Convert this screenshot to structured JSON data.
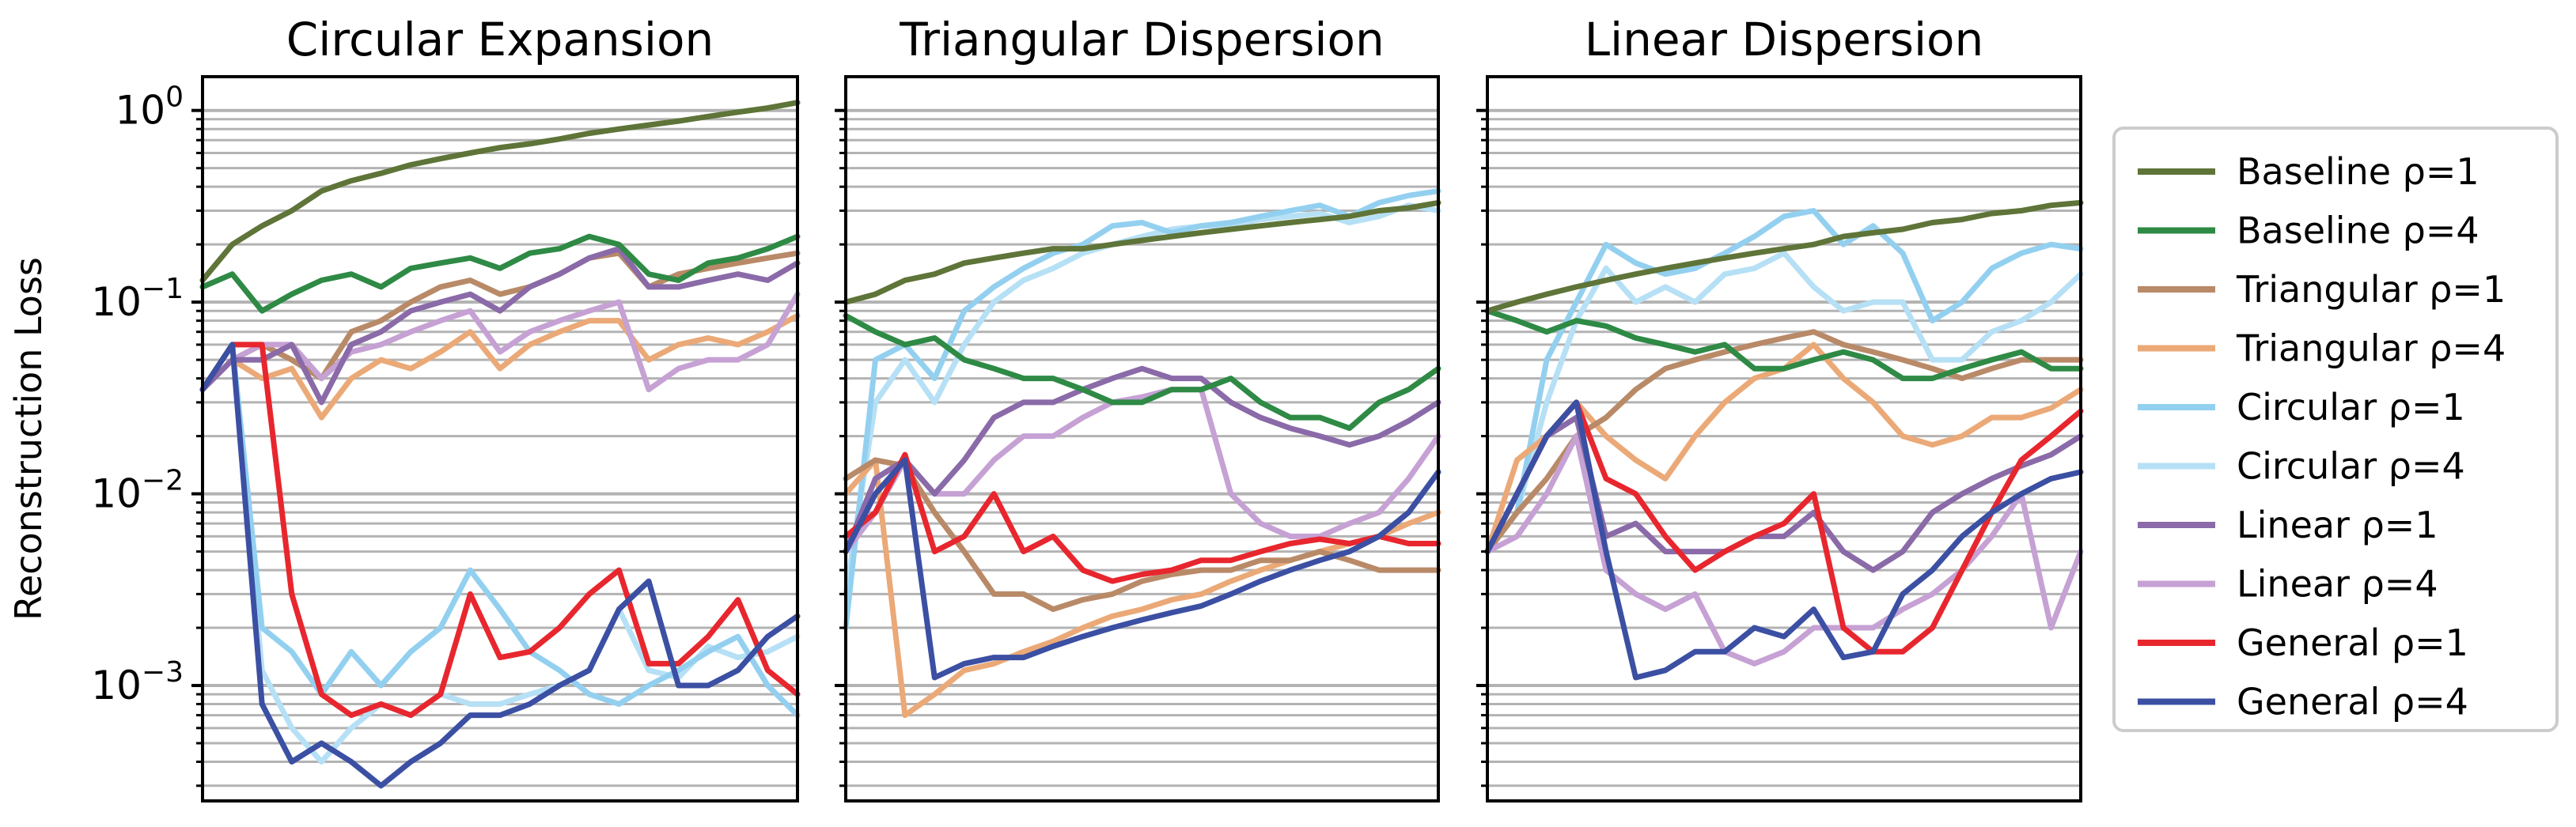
{
  "chart_data": {
    "type": "line",
    "yscale": "log",
    "ylabel": "Reconstruction Loss",
    "ylim": [
      0.00025,
      1.5
    ],
    "y_major_ticks": [
      {
        "value": 1,
        "label_base": "10",
        "label_exp": "0"
      },
      {
        "value": 0.1,
        "label_base": "10",
        "label_exp": "−1"
      },
      {
        "value": 0.01,
        "label_base": "10",
        "label_exp": "−2"
      },
      {
        "value": 0.001,
        "label_base": "10",
        "label_exp": "−3"
      }
    ],
    "grid": "horizontal, major and minor",
    "legend_placement": "right, outside",
    "legend": [
      {
        "key": "baseline1",
        "label": "Baseline ρ=1",
        "color": "#5f7438"
      },
      {
        "key": "baseline4",
        "label": "Baseline ρ=4",
        "color": "#2e8a45"
      },
      {
        "key": "tri1",
        "label": "Triangular ρ=1",
        "color": "#b98a68"
      },
      {
        "key": "tri4",
        "label": "Triangular ρ=4",
        "color": "#eba977"
      },
      {
        "key": "circ1",
        "label": "Circular ρ=1",
        "color": "#93d0f0"
      },
      {
        "key": "circ4",
        "label": "Circular ρ=4",
        "color": "#b6e0f5"
      },
      {
        "key": "lin1",
        "label": "Linear ρ=1",
        "color": "#8a6aa8"
      },
      {
        "key": "lin4",
        "label": "Linear ρ=4",
        "color": "#c6a1d4"
      },
      {
        "key": "gen1",
        "label": "General ρ=1",
        "color": "#e8262e"
      },
      {
        "key": "gen4",
        "label": "General ρ=4",
        "color": "#3b4fa3"
      }
    ],
    "panels": [
      {
        "title": "Circular Expansion",
        "x": [
          0,
          5,
          10,
          15,
          20,
          25,
          30,
          35,
          40,
          45,
          50,
          55,
          60,
          65,
          70,
          75,
          80,
          85,
          90,
          95,
          100
        ],
        "series": {
          "baseline1": [
            0.13,
            0.2,
            0.25,
            0.3,
            0.38,
            0.43,
            0.47,
            0.52,
            0.56,
            0.6,
            0.64,
            0.67,
            0.71,
            0.76,
            0.8,
            0.84,
            0.88,
            0.93,
            0.98,
            1.03,
            1.1
          ],
          "baseline4": [
            0.12,
            0.14,
            0.09,
            0.11,
            0.13,
            0.14,
            0.12,
            0.15,
            0.16,
            0.17,
            0.15,
            0.18,
            0.19,
            0.22,
            0.2,
            0.14,
            0.13,
            0.16,
            0.17,
            0.19,
            0.22
          ],
          "tri1": [
            0.035,
            0.05,
            0.06,
            0.05,
            0.04,
            0.07,
            0.08,
            0.1,
            0.12,
            0.13,
            0.11,
            0.12,
            0.14,
            0.17,
            0.18,
            0.12,
            0.14,
            0.15,
            0.16,
            0.17,
            0.18
          ],
          "tri4": [
            0.035,
            0.05,
            0.04,
            0.045,
            0.025,
            0.04,
            0.05,
            0.045,
            0.055,
            0.07,
            0.045,
            0.06,
            0.07,
            0.08,
            0.08,
            0.05,
            0.06,
            0.065,
            0.06,
            0.07,
            0.085
          ],
          "circ1": [
            0.035,
            0.06,
            0.002,
            0.0015,
            0.0009,
            0.0015,
            0.001,
            0.0015,
            0.002,
            0.004,
            0.0025,
            0.0015,
            0.0012,
            0.0009,
            0.0008,
            0.001,
            0.0012,
            0.0015,
            0.0018,
            0.001,
            0.0007
          ],
          "circ4": [
            0.035,
            0.06,
            0.0012,
            0.0006,
            0.0004,
            0.0006,
            0.0008,
            0.0007,
            0.0009,
            0.0008,
            0.0008,
            0.0009,
            0.001,
            0.0012,
            0.0025,
            0.0012,
            0.0011,
            0.0016,
            0.0014,
            0.0015,
            0.0018
          ],
          "lin1": [
            0.035,
            0.05,
            0.05,
            0.06,
            0.03,
            0.06,
            0.07,
            0.09,
            0.1,
            0.11,
            0.09,
            0.12,
            0.14,
            0.17,
            0.19,
            0.12,
            0.12,
            0.13,
            0.14,
            0.13,
            0.16
          ],
          "lin4": [
            0.035,
            0.05,
            0.06,
            0.06,
            0.04,
            0.055,
            0.06,
            0.07,
            0.08,
            0.09,
            0.055,
            0.07,
            0.08,
            0.09,
            0.1,
            0.035,
            0.045,
            0.05,
            0.05,
            0.06,
            0.11
          ],
          "gen1": [
            0.035,
            0.06,
            0.06,
            0.003,
            0.0009,
            0.0007,
            0.0008,
            0.0007,
            0.0009,
            0.003,
            0.0014,
            0.0015,
            0.002,
            0.003,
            0.004,
            0.0013,
            0.0013,
            0.0018,
            0.0028,
            0.0012,
            0.0009
          ],
          "gen4": [
            0.035,
            0.06,
            0.0008,
            0.0004,
            0.0005,
            0.0004,
            0.0003,
            0.0004,
            0.0005,
            0.0007,
            0.0007,
            0.0008,
            0.001,
            0.0012,
            0.0025,
            0.0035,
            0.001,
            0.001,
            0.0012,
            0.0018,
            0.0023
          ]
        }
      },
      {
        "title": "Triangular Dispersion",
        "x": [
          0,
          5,
          10,
          15,
          20,
          25,
          30,
          35,
          40,
          45,
          50,
          55,
          60,
          65,
          70,
          75,
          80,
          85,
          90,
          95,
          100
        ],
        "series": {
          "baseline1": [
            0.1,
            0.11,
            0.13,
            0.14,
            0.16,
            0.17,
            0.18,
            0.19,
            0.19,
            0.2,
            0.21,
            0.22,
            0.23,
            0.24,
            0.25,
            0.26,
            0.27,
            0.28,
            0.3,
            0.31,
            0.33
          ],
          "baseline4": [
            0.085,
            0.07,
            0.06,
            0.065,
            0.05,
            0.045,
            0.04,
            0.04,
            0.035,
            0.03,
            0.03,
            0.035,
            0.035,
            0.04,
            0.03,
            0.025,
            0.025,
            0.022,
            0.03,
            0.035,
            0.045
          ],
          "tri1": [
            0.012,
            0.015,
            0.014,
            0.008,
            0.005,
            0.003,
            0.003,
            0.0025,
            0.0028,
            0.003,
            0.0035,
            0.0038,
            0.004,
            0.004,
            0.0045,
            0.0045,
            0.005,
            0.0045,
            0.004,
            0.004,
            0.004
          ],
          "tri4": [
            0.01,
            0.015,
            0.0007,
            0.0009,
            0.0012,
            0.0013,
            0.0015,
            0.0017,
            0.002,
            0.0023,
            0.0025,
            0.0028,
            0.003,
            0.0035,
            0.004,
            0.0045,
            0.005,
            0.0055,
            0.006,
            0.007,
            0.008
          ],
          "circ1": [
            0.002,
            0.05,
            0.06,
            0.04,
            0.09,
            0.12,
            0.15,
            0.18,
            0.2,
            0.25,
            0.26,
            0.23,
            0.25,
            0.26,
            0.28,
            0.3,
            0.32,
            0.28,
            0.33,
            0.36,
            0.38
          ],
          "circ4": [
            0.003,
            0.03,
            0.05,
            0.03,
            0.06,
            0.1,
            0.13,
            0.15,
            0.18,
            0.2,
            0.22,
            0.24,
            0.25,
            0.25,
            0.27,
            0.28,
            0.29,
            0.26,
            0.28,
            0.32,
            0.3
          ],
          "lin1": [
            0.005,
            0.012,
            0.015,
            0.01,
            0.015,
            0.025,
            0.03,
            0.03,
            0.035,
            0.04,
            0.045,
            0.04,
            0.04,
            0.03,
            0.025,
            0.022,
            0.02,
            0.018,
            0.02,
            0.024,
            0.03
          ],
          "lin4": [
            0.005,
            0.008,
            0.015,
            0.01,
            0.01,
            0.015,
            0.02,
            0.02,
            0.025,
            0.03,
            0.032,
            0.035,
            0.035,
            0.01,
            0.007,
            0.006,
            0.006,
            0.007,
            0.008,
            0.012,
            0.02
          ],
          "gen1": [
            0.006,
            0.008,
            0.016,
            0.005,
            0.006,
            0.01,
            0.005,
            0.006,
            0.004,
            0.0035,
            0.0038,
            0.004,
            0.0045,
            0.0045,
            0.005,
            0.0055,
            0.0058,
            0.0055,
            0.006,
            0.0055,
            0.0055
          ],
          "gen4": [
            0.005,
            0.01,
            0.015,
            0.0011,
            0.0013,
            0.0014,
            0.0014,
            0.0016,
            0.0018,
            0.002,
            0.0022,
            0.0024,
            0.0026,
            0.003,
            0.0035,
            0.004,
            0.0045,
            0.005,
            0.006,
            0.008,
            0.013
          ]
        }
      },
      {
        "title": "Linear Dispersion",
        "x": [
          0,
          5,
          10,
          15,
          20,
          25,
          30,
          35,
          40,
          45,
          50,
          55,
          60,
          65,
          70,
          75,
          80,
          85,
          90,
          95,
          100
        ],
        "series": {
          "baseline1": [
            0.09,
            0.1,
            0.11,
            0.12,
            0.13,
            0.14,
            0.15,
            0.16,
            0.17,
            0.18,
            0.19,
            0.2,
            0.22,
            0.23,
            0.24,
            0.26,
            0.27,
            0.29,
            0.3,
            0.32,
            0.33
          ],
          "baseline4": [
            0.09,
            0.08,
            0.07,
            0.08,
            0.075,
            0.065,
            0.06,
            0.055,
            0.06,
            0.045,
            0.045,
            0.05,
            0.055,
            0.05,
            0.04,
            0.04,
            0.045,
            0.05,
            0.055,
            0.045,
            0.045
          ],
          "tri1": [
            0.005,
            0.008,
            0.012,
            0.02,
            0.025,
            0.035,
            0.045,
            0.05,
            0.055,
            0.06,
            0.065,
            0.07,
            0.06,
            0.055,
            0.05,
            0.045,
            0.04,
            0.045,
            0.05,
            0.05,
            0.05
          ],
          "tri4": [
            0.005,
            0.015,
            0.02,
            0.03,
            0.02,
            0.015,
            0.012,
            0.02,
            0.03,
            0.04,
            0.045,
            0.06,
            0.04,
            0.03,
            0.02,
            0.018,
            0.02,
            0.025,
            0.025,
            0.028,
            0.035
          ],
          "circ1": [
            0.005,
            0.008,
            0.05,
            0.1,
            0.2,
            0.16,
            0.14,
            0.15,
            0.18,
            0.22,
            0.28,
            0.3,
            0.2,
            0.25,
            0.18,
            0.08,
            0.1,
            0.15,
            0.18,
            0.2,
            0.19
          ],
          "circ4": [
            0.005,
            0.008,
            0.03,
            0.08,
            0.15,
            0.1,
            0.12,
            0.1,
            0.14,
            0.15,
            0.18,
            0.12,
            0.09,
            0.1,
            0.1,
            0.05,
            0.05,
            0.07,
            0.08,
            0.1,
            0.14
          ],
          "lin1": [
            0.005,
            0.01,
            0.02,
            0.025,
            0.006,
            0.007,
            0.005,
            0.005,
            0.005,
            0.006,
            0.006,
            0.008,
            0.005,
            0.004,
            0.005,
            0.008,
            0.01,
            0.012,
            0.014,
            0.016,
            0.02
          ],
          "lin4": [
            0.005,
            0.006,
            0.01,
            0.02,
            0.004,
            0.003,
            0.0025,
            0.003,
            0.0015,
            0.0013,
            0.0015,
            0.002,
            0.002,
            0.002,
            0.0025,
            0.003,
            0.004,
            0.006,
            0.01,
            0.002,
            0.005
          ],
          "gen1": [
            0.005,
            0.01,
            0.02,
            0.03,
            0.012,
            0.01,
            0.006,
            0.004,
            0.005,
            0.006,
            0.007,
            0.01,
            0.002,
            0.0015,
            0.0015,
            0.002,
            0.004,
            0.008,
            0.015,
            0.02,
            0.027
          ],
          "gen4": [
            0.005,
            0.01,
            0.02,
            0.03,
            0.005,
            0.0011,
            0.0012,
            0.0015,
            0.0015,
            0.002,
            0.0018,
            0.0025,
            0.0014,
            0.0015,
            0.003,
            0.004,
            0.006,
            0.008,
            0.01,
            0.012,
            0.013
          ]
        }
      }
    ]
  }
}
